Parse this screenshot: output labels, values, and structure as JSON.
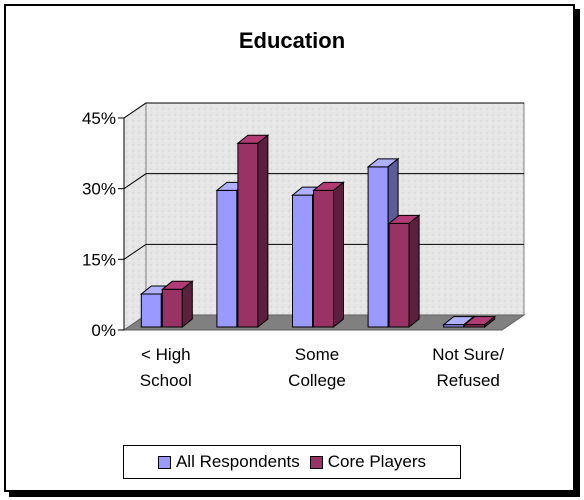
{
  "chart_data": {
    "type": "bar",
    "title": "Education",
    "categories": [
      "< High School",
      "",
      "Some College",
      "",
      "Not Sure/ Refused"
    ],
    "category_labels": [
      [
        "< High",
        "School"
      ],
      [],
      [
        "Some",
        "College"
      ],
      [],
      [
        "Not Sure/",
        "Refused"
      ]
    ],
    "series": [
      {
        "name": "All Respondents",
        "values": [
          7,
          29,
          28,
          34,
          0.5
        ],
        "color": "#9999ff"
      },
      {
        "name": "Core Players",
        "values": [
          8,
          39,
          29,
          22,
          0.5
        ],
        "color": "#993366"
      }
    ],
    "y_ticks": [
      "0%",
      "15%",
      "30%",
      "45%"
    ],
    "ylim": [
      0,
      45
    ],
    "grid": true,
    "legend_position": "bottom",
    "style": "3d-clustered-bar"
  },
  "legend": {
    "items": [
      {
        "label": "All Respondents",
        "color": "#9999ff"
      },
      {
        "label": "Core Players",
        "color": "#993366"
      }
    ]
  }
}
